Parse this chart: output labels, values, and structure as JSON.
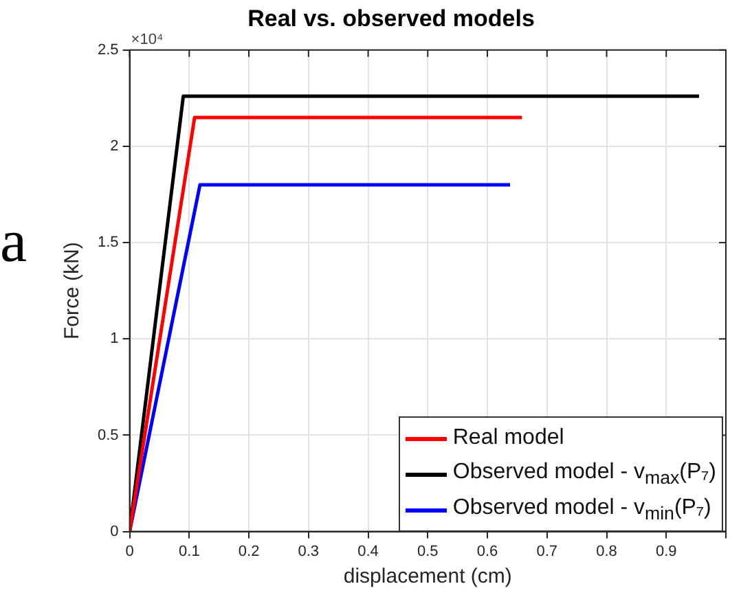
{
  "chart_data": {
    "type": "line",
    "title": "Real vs. observed models",
    "xlabel": "displacement (cm)",
    "ylabel": "Force (kN)",
    "xlim": [
      0,
      1
    ],
    "xticks": [
      0,
      0.1,
      0.2,
      0.3,
      0.4,
      0.5,
      0.6,
      0.7,
      0.8,
      0.9,
      {
        "value": 1,
        "label": null
      }
    ],
    "ylim": [
      0,
      2.5
    ],
    "yticks": [
      0,
      0.5,
      1,
      1.5,
      2,
      2.5
    ],
    "series": [
      {
        "name": "Real model",
        "color": "#ff0000",
        "x": [
          0,
          0.109,
          0.658
        ],
        "values": [
          0,
          2.15,
          2.15
        ]
      },
      {
        "name": "Observed model - v$_{max}$(P₇)",
        "color": "#000000",
        "x": [
          0,
          0.09,
          0.955
        ],
        "values": [
          0,
          2.26,
          2.26
        ]
      },
      {
        "name": "Observed model - v$_{min}$(P₇)",
        "color": "#0000ff",
        "x": [
          0,
          0.118,
          0.638
        ],
        "values": [
          0,
          1.8,
          1.8
        ]
      }
    ],
    "annotations": [
      "×10⁴",
      "a"
    ],
    "grid": true,
    "legend": "bottom right",
    "marker": "none",
    "line_style": "solid"
  }
}
